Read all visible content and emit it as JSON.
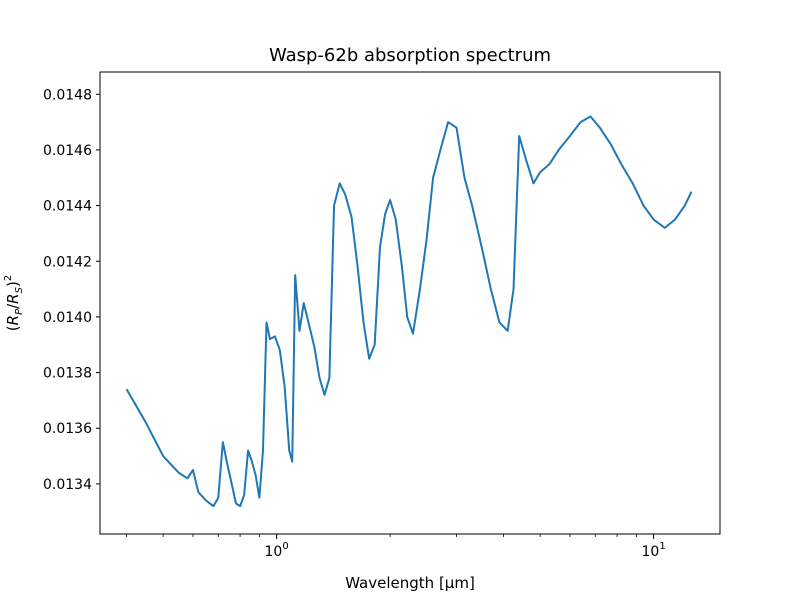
{
  "chart_data": {
    "type": "line",
    "title": "Wasp-62b absorption spectrum",
    "xlabel": "Wavelength [μm]",
    "ylabel": "(R_P/R_S)^2",
    "x_scale": "log",
    "xlim": [
      0.34,
      15.0
    ],
    "ylim": [
      0.01322,
      0.01488
    ],
    "grid": false,
    "x_ticks": [
      {
        "value": 1,
        "base": "10",
        "exp": "0"
      },
      {
        "value": 10,
        "base": "10",
        "exp": "1"
      }
    ],
    "y_ticks": [
      "0.0134",
      "0.0136",
      "0.0138",
      "0.0140",
      "0.0142",
      "0.0144",
      "0.0146",
      "0.0148"
    ],
    "series": [
      {
        "color": "#1f77b4",
        "x": [
          0.4,
          0.45,
          0.5,
          0.55,
          0.58,
          0.6,
          0.62,
          0.65,
          0.68,
          0.7,
          0.72,
          0.74,
          0.76,
          0.78,
          0.8,
          0.82,
          0.84,
          0.86,
          0.88,
          0.9,
          0.92,
          0.94,
          0.96,
          0.99,
          1.02,
          1.05,
          1.08,
          1.1,
          1.12,
          1.15,
          1.18,
          1.22,
          1.26,
          1.3,
          1.34,
          1.38,
          1.42,
          1.47,
          1.52,
          1.58,
          1.64,
          1.7,
          1.76,
          1.82,
          1.88,
          1.94,
          2.0,
          2.07,
          2.15,
          2.22,
          2.3,
          2.4,
          2.5,
          2.6,
          2.72,
          2.85,
          3.0,
          3.15,
          3.3,
          3.5,
          3.7,
          3.9,
          4.1,
          4.25,
          4.4,
          4.6,
          4.8,
          5.0,
          5.3,
          5.6,
          6.0,
          6.4,
          6.8,
          7.2,
          7.7,
          8.2,
          8.8,
          9.4,
          10.0,
          10.7,
          11.4,
          12.1,
          12.6
        ],
        "y": [
          0.01374,
          0.01362,
          0.0135,
          0.01344,
          0.01342,
          0.01345,
          0.01337,
          0.01334,
          0.01332,
          0.01335,
          0.01355,
          0.01347,
          0.0134,
          0.01333,
          0.01332,
          0.01336,
          0.01352,
          0.01348,
          0.01343,
          0.01335,
          0.01352,
          0.01398,
          0.01392,
          0.01393,
          0.01388,
          0.01375,
          0.01352,
          0.01348,
          0.01415,
          0.01395,
          0.01405,
          0.01397,
          0.01389,
          0.01378,
          0.01372,
          0.01378,
          0.0144,
          0.01448,
          0.01444,
          0.01436,
          0.01418,
          0.01398,
          0.01385,
          0.0139,
          0.01425,
          0.01437,
          0.01442,
          0.01435,
          0.01418,
          0.014,
          0.01394,
          0.0141,
          0.01428,
          0.0145,
          0.0146,
          0.0147,
          0.01468,
          0.0145,
          0.0144,
          0.01425,
          0.0141,
          0.01398,
          0.01395,
          0.0141,
          0.01465,
          0.01456,
          0.01448,
          0.01452,
          0.01455,
          0.0146,
          0.01465,
          0.0147,
          0.01472,
          0.01468,
          0.01462,
          0.01455,
          0.01448,
          0.0144,
          0.01435,
          0.01432,
          0.01435,
          0.0144,
          0.01445
        ]
      }
    ]
  }
}
